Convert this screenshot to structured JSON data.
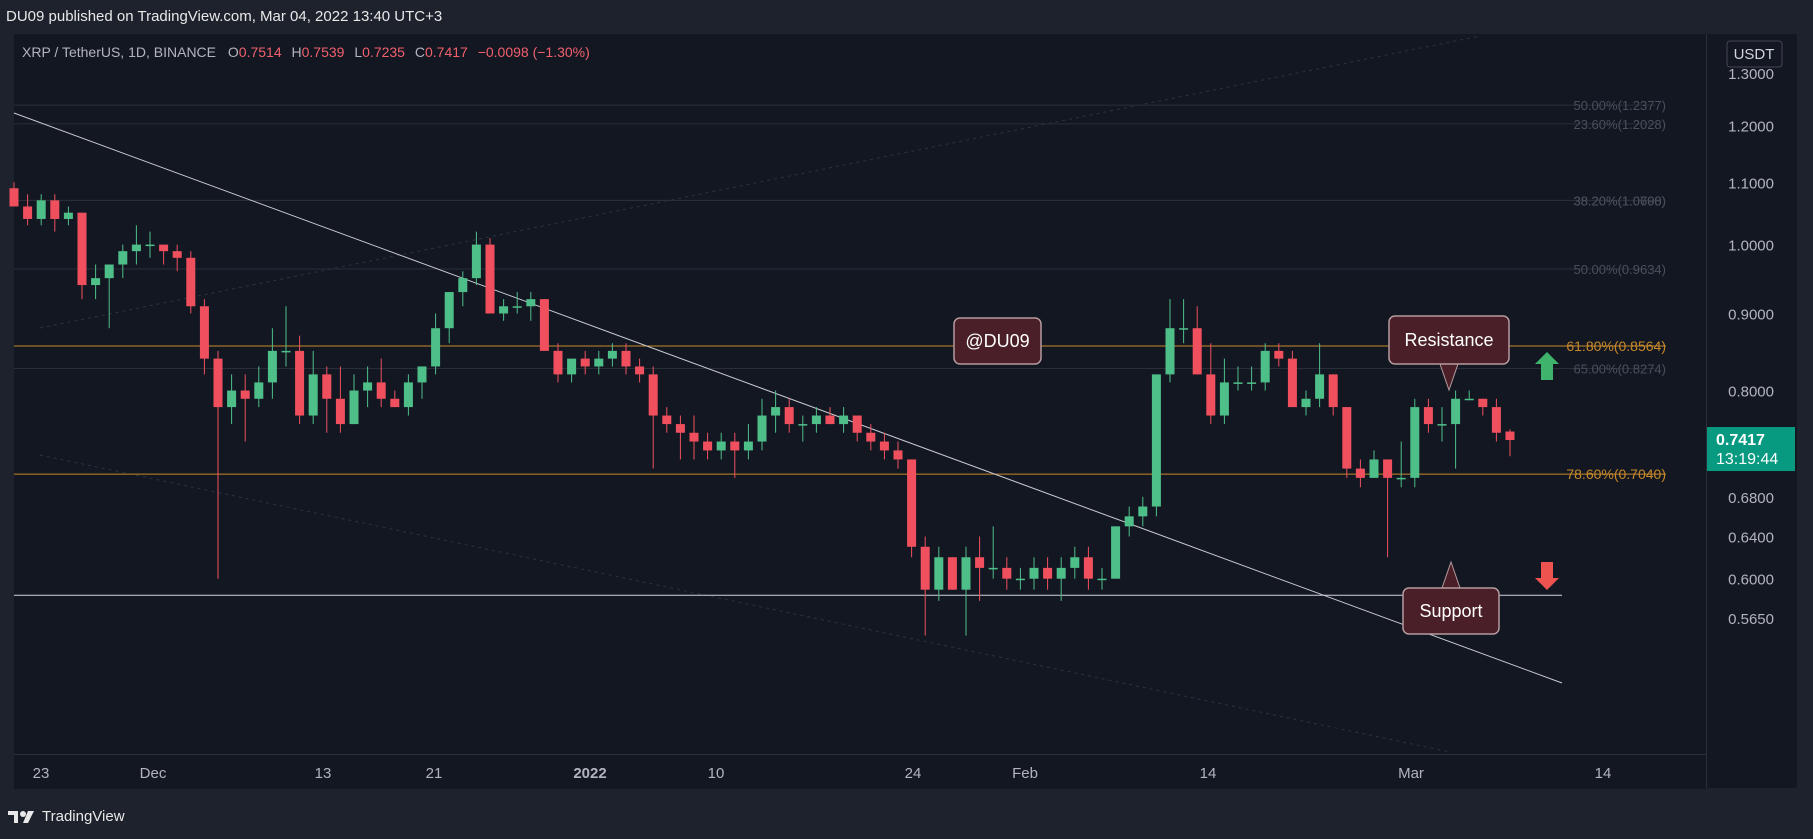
{
  "header": {
    "publish_line": "DU09 published on TradingView.com, Mar 04, 2022 13:40 UTC+3"
  },
  "legend": {
    "symbol": "XRP / TetherUS, 1D, BINANCE",
    "o_label": "O",
    "o_value": "0.7514",
    "h_label": "H",
    "h_value": "0.7539",
    "l_label": "L",
    "l_value": "0.7235",
    "c_label": "C",
    "c_value": "0.7417",
    "change": "−0.0098 (−1.30%)"
  },
  "footer": {
    "brand": "TradingView"
  },
  "chart_data": {
    "type": "candlestick",
    "currency": "USDT",
    "y_ticks": [
      "1.3000",
      "1.2000",
      "1.1000",
      "1.0000",
      "0.9000",
      "0.8000",
      "0.6800",
      "0.6400",
      "0.6000",
      "0.5650"
    ],
    "x_ticks": [
      "23",
      "Dec",
      "13",
      "21",
      "2022",
      "10",
      "24",
      "Feb",
      "14",
      "Mar",
      "14"
    ],
    "candles": [
      {
        "o": 1.09,
        "h": 1.1,
        "l": 1.06,
        "c": 1.06
      },
      {
        "o": 1.06,
        "h": 1.08,
        "l": 1.03,
        "c": 1.04
      },
      {
        "o": 1.04,
        "h": 1.08,
        "l": 1.03,
        "c": 1.07
      },
      {
        "o": 1.07,
        "h": 1.08,
        "l": 1.02,
        "c": 1.04
      },
      {
        "o": 1.04,
        "h": 1.06,
        "l": 1.03,
        "c": 1.05
      },
      {
        "o": 1.05,
        "h": 1.05,
        "l": 0.92,
        "c": 0.94
      },
      {
        "o": 0.94,
        "h": 0.97,
        "l": 0.92,
        "c": 0.95
      },
      {
        "o": 0.95,
        "h": 0.97,
        "l": 0.88,
        "c": 0.97
      },
      {
        "o": 0.97,
        "h": 1.0,
        "l": 0.95,
        "c": 0.99
      },
      {
        "o": 0.99,
        "h": 1.03,
        "l": 0.97,
        "c": 1.0
      },
      {
        "o": 1.0,
        "h": 1.02,
        "l": 0.98,
        "c": 1.0
      },
      {
        "o": 1.0,
        "h": 1.0,
        "l": 0.97,
        "c": 0.99
      },
      {
        "o": 0.99,
        "h": 1.0,
        "l": 0.96,
        "c": 0.98
      },
      {
        "o": 0.98,
        "h": 0.99,
        "l": 0.9,
        "c": 0.91
      },
      {
        "o": 0.91,
        "h": 0.92,
        "l": 0.82,
        "c": 0.84
      },
      {
        "o": 0.84,
        "h": 0.85,
        "l": 0.6,
        "c": 0.78
      },
      {
        "o": 0.78,
        "h": 0.82,
        "l": 0.76,
        "c": 0.8
      },
      {
        "o": 0.8,
        "h": 0.82,
        "l": 0.74,
        "c": 0.79
      },
      {
        "o": 0.79,
        "h": 0.83,
        "l": 0.78,
        "c": 0.81
      },
      {
        "o": 0.81,
        "h": 0.88,
        "l": 0.79,
        "c": 0.85
      },
      {
        "o": 0.85,
        "h": 0.91,
        "l": 0.83,
        "c": 0.85
      },
      {
        "o": 0.85,
        "h": 0.87,
        "l": 0.76,
        "c": 0.77
      },
      {
        "o": 0.77,
        "h": 0.85,
        "l": 0.76,
        "c": 0.82
      },
      {
        "o": 0.82,
        "h": 0.83,
        "l": 0.75,
        "c": 0.79
      },
      {
        "o": 0.79,
        "h": 0.83,
        "l": 0.75,
        "c": 0.76
      },
      {
        "o": 0.76,
        "h": 0.82,
        "l": 0.76,
        "c": 0.8
      },
      {
        "o": 0.8,
        "h": 0.83,
        "l": 0.78,
        "c": 0.81
      },
      {
        "o": 0.81,
        "h": 0.84,
        "l": 0.78,
        "c": 0.79
      },
      {
        "o": 0.79,
        "h": 0.8,
        "l": 0.78,
        "c": 0.78
      },
      {
        "o": 0.78,
        "h": 0.82,
        "l": 0.77,
        "c": 0.81
      },
      {
        "o": 0.81,
        "h": 0.83,
        "l": 0.79,
        "c": 0.83
      },
      {
        "o": 0.83,
        "h": 0.9,
        "l": 0.82,
        "c": 0.88
      },
      {
        "o": 0.88,
        "h": 0.93,
        "l": 0.86,
        "c": 0.93
      },
      {
        "o": 0.93,
        "h": 0.96,
        "l": 0.91,
        "c": 0.95
      },
      {
        "o": 0.95,
        "h": 1.02,
        "l": 0.94,
        "c": 1.0
      },
      {
        "o": 1.0,
        "h": 1.01,
        "l": 0.9,
        "c": 0.9
      },
      {
        "o": 0.9,
        "h": 0.92,
        "l": 0.89,
        "c": 0.91
      },
      {
        "o": 0.91,
        "h": 0.93,
        "l": 0.9,
        "c": 0.91
      },
      {
        "o": 0.91,
        "h": 0.93,
        "l": 0.89,
        "c": 0.92
      },
      {
        "o": 0.92,
        "h": 0.92,
        "l": 0.85,
        "c": 0.85
      },
      {
        "o": 0.85,
        "h": 0.86,
        "l": 0.81,
        "c": 0.82
      },
      {
        "o": 0.82,
        "h": 0.84,
        "l": 0.81,
        "c": 0.84
      },
      {
        "o": 0.84,
        "h": 0.85,
        "l": 0.82,
        "c": 0.83
      },
      {
        "o": 0.83,
        "h": 0.85,
        "l": 0.82,
        "c": 0.84
      },
      {
        "o": 0.84,
        "h": 0.86,
        "l": 0.83,
        "c": 0.85
      },
      {
        "o": 0.85,
        "h": 0.86,
        "l": 0.82,
        "c": 0.83
      },
      {
        "o": 0.83,
        "h": 0.84,
        "l": 0.81,
        "c": 0.82
      },
      {
        "o": 0.82,
        "h": 0.83,
        "l": 0.71,
        "c": 0.77
      },
      {
        "o": 0.77,
        "h": 0.78,
        "l": 0.75,
        "c": 0.76
      },
      {
        "o": 0.76,
        "h": 0.77,
        "l": 0.72,
        "c": 0.75
      },
      {
        "o": 0.75,
        "h": 0.77,
        "l": 0.72,
        "c": 0.74
      },
      {
        "o": 0.74,
        "h": 0.75,
        "l": 0.72,
        "c": 0.73
      },
      {
        "o": 0.73,
        "h": 0.75,
        "l": 0.72,
        "c": 0.74
      },
      {
        "o": 0.74,
        "h": 0.75,
        "l": 0.7,
        "c": 0.73
      },
      {
        "o": 0.73,
        "h": 0.76,
        "l": 0.72,
        "c": 0.74
      },
      {
        "o": 0.74,
        "h": 0.79,
        "l": 0.73,
        "c": 0.77
      },
      {
        "o": 0.77,
        "h": 0.8,
        "l": 0.75,
        "c": 0.78
      },
      {
        "o": 0.78,
        "h": 0.79,
        "l": 0.75,
        "c": 0.76
      },
      {
        "o": 0.76,
        "h": 0.77,
        "l": 0.74,
        "c": 0.76
      },
      {
        "o": 0.76,
        "h": 0.78,
        "l": 0.75,
        "c": 0.77
      },
      {
        "o": 0.77,
        "h": 0.78,
        "l": 0.76,
        "c": 0.76
      },
      {
        "o": 0.76,
        "h": 0.78,
        "l": 0.75,
        "c": 0.77
      },
      {
        "o": 0.77,
        "h": 0.77,
        "l": 0.74,
        "c": 0.75
      },
      {
        "o": 0.75,
        "h": 0.76,
        "l": 0.73,
        "c": 0.74
      },
      {
        "o": 0.74,
        "h": 0.75,
        "l": 0.72,
        "c": 0.73
      },
      {
        "o": 0.73,
        "h": 0.74,
        "l": 0.71,
        "c": 0.72
      },
      {
        "o": 0.72,
        "h": 0.72,
        "l": 0.62,
        "c": 0.63
      },
      {
        "o": 0.63,
        "h": 0.64,
        "l": 0.55,
        "c": 0.59
      },
      {
        "o": 0.59,
        "h": 0.63,
        "l": 0.58,
        "c": 0.62
      },
      {
        "o": 0.62,
        "h": 0.62,
        "l": 0.59,
        "c": 0.59
      },
      {
        "o": 0.59,
        "h": 0.63,
        "l": 0.55,
        "c": 0.62
      },
      {
        "o": 0.62,
        "h": 0.64,
        "l": 0.58,
        "c": 0.61
      },
      {
        "o": 0.61,
        "h": 0.65,
        "l": 0.6,
        "c": 0.61
      },
      {
        "o": 0.61,
        "h": 0.62,
        "l": 0.59,
        "c": 0.6
      },
      {
        "o": 0.6,
        "h": 0.61,
        "l": 0.59,
        "c": 0.6
      },
      {
        "o": 0.6,
        "h": 0.62,
        "l": 0.59,
        "c": 0.61
      },
      {
        "o": 0.61,
        "h": 0.62,
        "l": 0.59,
        "c": 0.6
      },
      {
        "o": 0.6,
        "h": 0.62,
        "l": 0.58,
        "c": 0.61
      },
      {
        "o": 0.61,
        "h": 0.63,
        "l": 0.6,
        "c": 0.62
      },
      {
        "o": 0.62,
        "h": 0.63,
        "l": 0.59,
        "c": 0.6
      },
      {
        "o": 0.6,
        "h": 0.61,
        "l": 0.59,
        "c": 0.6
      },
      {
        "o": 0.6,
        "h": 0.65,
        "l": 0.6,
        "c": 0.65
      },
      {
        "o": 0.65,
        "h": 0.67,
        "l": 0.64,
        "c": 0.66
      },
      {
        "o": 0.66,
        "h": 0.68,
        "l": 0.65,
        "c": 0.67
      },
      {
        "o": 0.67,
        "h": 0.82,
        "l": 0.66,
        "c": 0.82
      },
      {
        "o": 0.82,
        "h": 0.92,
        "l": 0.81,
        "c": 0.88
      },
      {
        "o": 0.88,
        "h": 0.92,
        "l": 0.86,
        "c": 0.88
      },
      {
        "o": 0.88,
        "h": 0.91,
        "l": 0.82,
        "c": 0.82
      },
      {
        "o": 0.82,
        "h": 0.86,
        "l": 0.76,
        "c": 0.77
      },
      {
        "o": 0.77,
        "h": 0.84,
        "l": 0.76,
        "c": 0.81
      },
      {
        "o": 0.81,
        "h": 0.83,
        "l": 0.8,
        "c": 0.81
      },
      {
        "o": 0.81,
        "h": 0.83,
        "l": 0.8,
        "c": 0.81
      },
      {
        "o": 0.81,
        "h": 0.86,
        "l": 0.8,
        "c": 0.85
      },
      {
        "o": 0.85,
        "h": 0.86,
        "l": 0.83,
        "c": 0.84
      },
      {
        "o": 0.84,
        "h": 0.85,
        "l": 0.78,
        "c": 0.78
      },
      {
        "o": 0.78,
        "h": 0.8,
        "l": 0.77,
        "c": 0.79
      },
      {
        "o": 0.79,
        "h": 0.86,
        "l": 0.78,
        "c": 0.82
      },
      {
        "o": 0.82,
        "h": 0.82,
        "l": 0.77,
        "c": 0.78
      },
      {
        "o": 0.78,
        "h": 0.78,
        "l": 0.7,
        "c": 0.71
      },
      {
        "o": 0.71,
        "h": 0.72,
        "l": 0.69,
        "c": 0.7
      },
      {
        "o": 0.7,
        "h": 0.73,
        "l": 0.7,
        "c": 0.72
      },
      {
        "o": 0.72,
        "h": 0.72,
        "l": 0.62,
        "c": 0.7
      },
      {
        "o": 0.7,
        "h": 0.74,
        "l": 0.69,
        "c": 0.7
      },
      {
        "o": 0.7,
        "h": 0.79,
        "l": 0.69,
        "c": 0.78
      },
      {
        "o": 0.78,
        "h": 0.79,
        "l": 0.75,
        "c": 0.76
      },
      {
        "o": 0.76,
        "h": 0.78,
        "l": 0.74,
        "c": 0.76
      },
      {
        "o": 0.76,
        "h": 0.8,
        "l": 0.71,
        "c": 0.79
      },
      {
        "o": 0.79,
        "h": 0.8,
        "l": 0.79,
        "c": 0.79
      },
      {
        "o": 0.79,
        "h": 0.79,
        "l": 0.77,
        "c": 0.78
      },
      {
        "o": 0.78,
        "h": 0.79,
        "l": 0.74,
        "c": 0.75
      },
      {
        "o": 0.7514,
        "h": 0.7539,
        "l": 0.7235,
        "c": 0.7417
      }
    ],
    "horizontal_levels": [
      {
        "label": "61.80%(0.8564)",
        "price": 0.8564,
        "color": "#c8892a"
      },
      {
        "label": "78.60%(0.7040)",
        "price": 0.704,
        "color": "#c8892a"
      }
    ],
    "faint_levels": [
      {
        "label": "50.00%(1.2377)",
        "price": 1.2377
      },
      {
        "label": "23.60%(1.2028)",
        "price": 1.2028
      },
      {
        "label": "38.20%(1.0700)",
        "price": 1.07
      },
      {
        "label": "38.20%(1.0698)",
        "price": 1.0698
      },
      {
        "label": "50.00%(0.9634)",
        "price": 0.9634
      },
      {
        "label": "65.00%(0.8274)",
        "price": 0.8274
      }
    ],
    "support_floor": 0.585,
    "last_price": "0.7417",
    "countdown": "13:19:44",
    "colors": {
      "up": "#26a69a",
      "down": "#ef5350",
      "accent": "#c8892a",
      "candle_up": "#4fbf8a",
      "candle_down": "#f0505e"
    }
  },
  "annotations": {
    "watermark": "@DU09",
    "resistance": "Resistance",
    "support": "Support"
  }
}
